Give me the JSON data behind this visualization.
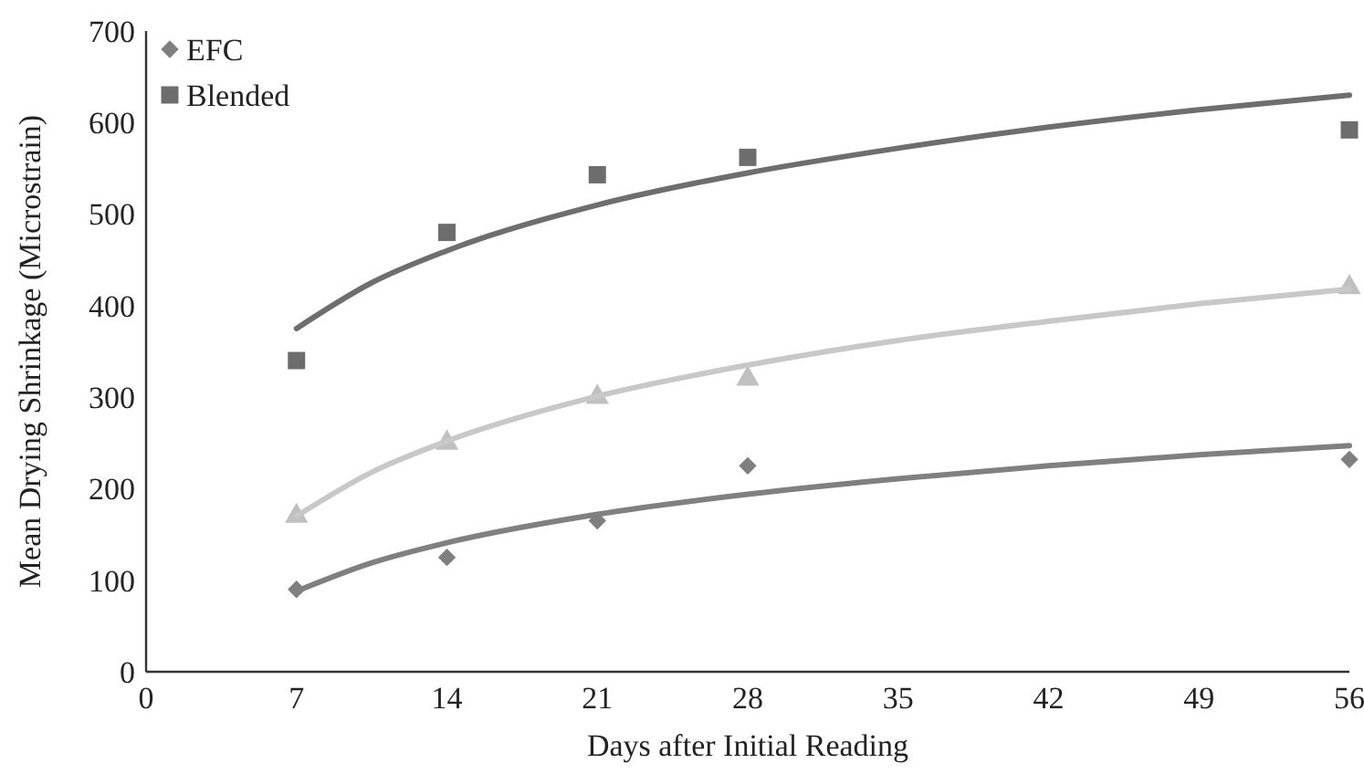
{
  "chart_data": {
    "type": "scatter",
    "xlabel": "Days after Initial Reading",
    "ylabel": "Mean Drying Shrinkage (Microstrain)",
    "xlim": [
      0,
      56
    ],
    "xticks": [
      0,
      7,
      14,
      21,
      28,
      35,
      42,
      49,
      56
    ],
    "ylim": [
      0,
      700
    ],
    "yticks": [
      0,
      100,
      200,
      300,
      400,
      500,
      600,
      700
    ],
    "grid": false,
    "legend": "top left",
    "series": [
      {
        "name": "EFC",
        "type": "scatter",
        "marker": "diamond",
        "color": "#7f7f7f",
        "x": [
          7,
          14,
          21,
          28,
          56
        ],
        "values": [
          90,
          125,
          165,
          225,
          232
        ]
      },
      {
        "name": "Blended",
        "type": "scatter",
        "marker": "square",
        "color": "#6d6d6d",
        "x": [
          7,
          14,
          21,
          28,
          56
        ],
        "values": [
          340,
          480,
          543,
          562,
          592
        ]
      },
      {
        "type": "scatter",
        "marker": "triangle",
        "color": "#c0c0c0",
        "x": [
          7,
          14,
          21,
          28,
          56
        ],
        "values": [
          170,
          250,
          300,
          320,
          420
        ]
      },
      {
        "type": "line",
        "marker": "none",
        "color": "#808080",
        "x": [
          7,
          10.5,
          14,
          21,
          28,
          35,
          42,
          49,
          56
        ],
        "values": [
          88,
          119,
          141,
          172,
          194,
          211,
          225,
          237,
          247
        ]
      },
      {
        "type": "line",
        "marker": "none",
        "color": "#6e6e6e",
        "x": [
          7,
          10.5,
          14,
          21,
          28,
          35,
          42,
          49,
          56
        ],
        "values": [
          375,
          425,
          460,
          510,
          545,
          572,
          595,
          614,
          630
        ]
      },
      {
        "type": "line",
        "marker": "none",
        "color": "#c8c8c8",
        "x": [
          7,
          10.5,
          14,
          21,
          28,
          35,
          42,
          49,
          56
        ],
        "values": [
          170,
          218,
          252,
          301,
          335,
          362,
          383,
          402,
          418
        ]
      }
    ]
  }
}
